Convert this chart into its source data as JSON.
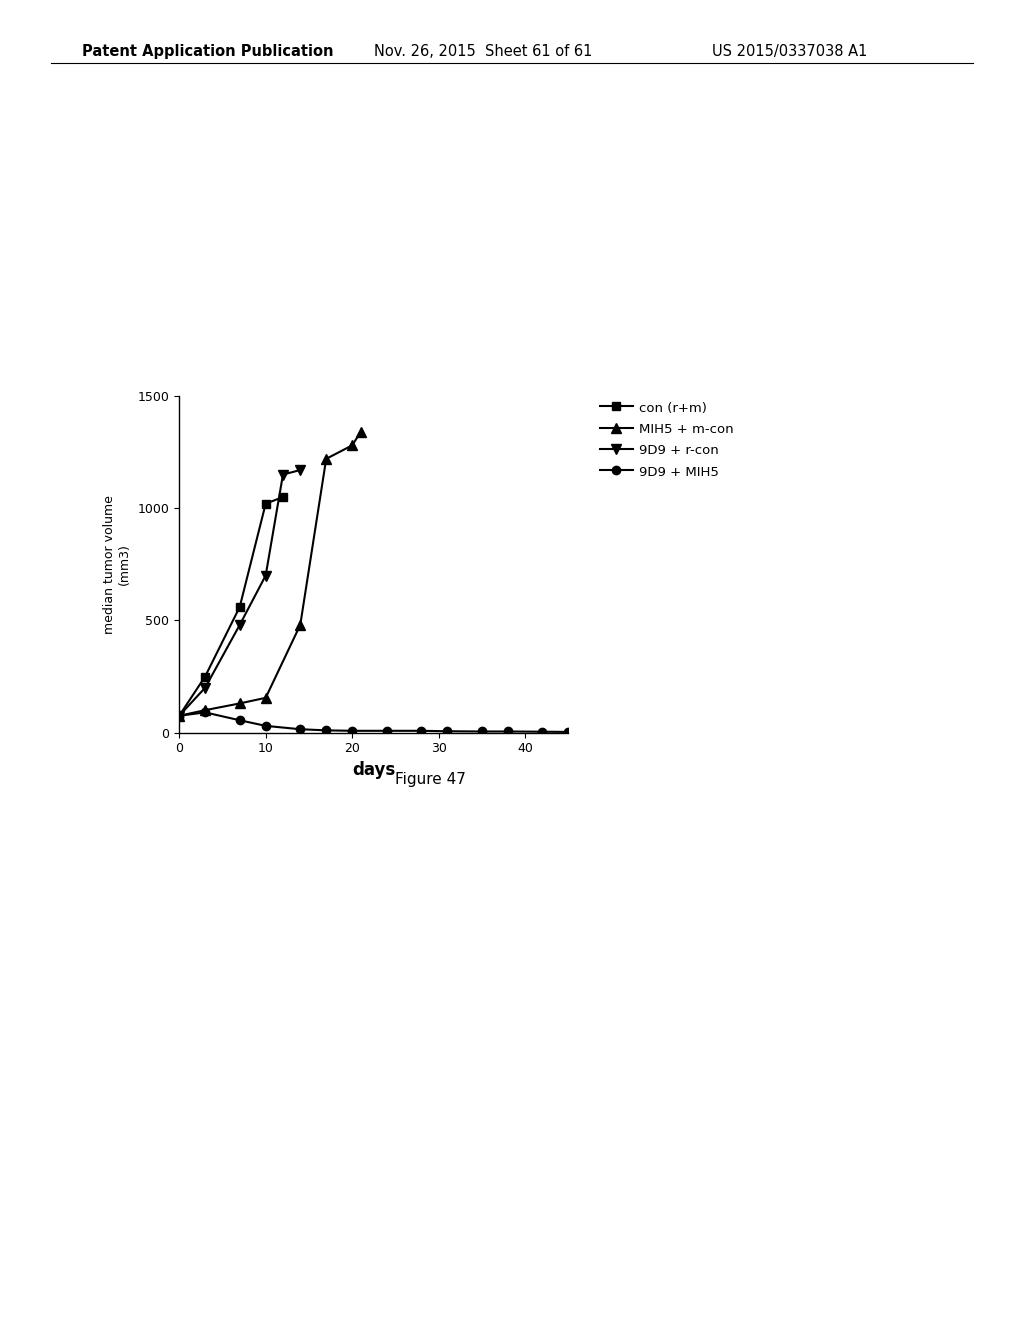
{
  "title_header": "Patent Application Publication",
  "title_date": "Nov. 26, 2015  Sheet 61 of 61",
  "title_patent": "US 2015/0337038 A1",
  "figure_label": "Figure 47",
  "ylabel": "median tumor volume\n(mm3)",
  "xlabel": "days",
  "ylim": [
    0,
    1500
  ],
  "xlim": [
    0,
    45
  ],
  "yticks": [
    0,
    500,
    1000,
    1500
  ],
  "xticks": [
    0,
    10,
    20,
    30,
    40
  ],
  "series": [
    {
      "label": "con (r+m)",
      "marker": "s",
      "color": "#000000",
      "x": [
        0,
        3,
        7,
        10,
        12
      ],
      "y": [
        75,
        250,
        560,
        1020,
        1050
      ]
    },
    {
      "label": "MIH5 + m-con",
      "marker": "^",
      "color": "#000000",
      "x": [
        0,
        3,
        7,
        10,
        14,
        17,
        20,
        21
      ],
      "y": [
        75,
        100,
        130,
        155,
        480,
        1220,
        1280,
        1340
      ]
    },
    {
      "label": "9D9 + r-con",
      "marker": "v",
      "color": "#000000",
      "x": [
        0,
        3,
        7,
        10,
        12,
        14
      ],
      "y": [
        75,
        200,
        480,
        700,
        1150,
        1170
      ]
    },
    {
      "label": "9D9 + MIH5",
      "marker": "o",
      "color": "#000000",
      "x": [
        0,
        3,
        7,
        10,
        14,
        17,
        20,
        24,
        28,
        31,
        35,
        38,
        42,
        45
      ],
      "y": [
        75,
        90,
        55,
        30,
        15,
        10,
        8,
        8,
        8,
        6,
        5,
        5,
        4,
        3
      ]
    }
  ],
  "background_color": "#ffffff",
  "line_width": 1.5,
  "marker_size": 6,
  "font_family": "DejaVu Sans"
}
